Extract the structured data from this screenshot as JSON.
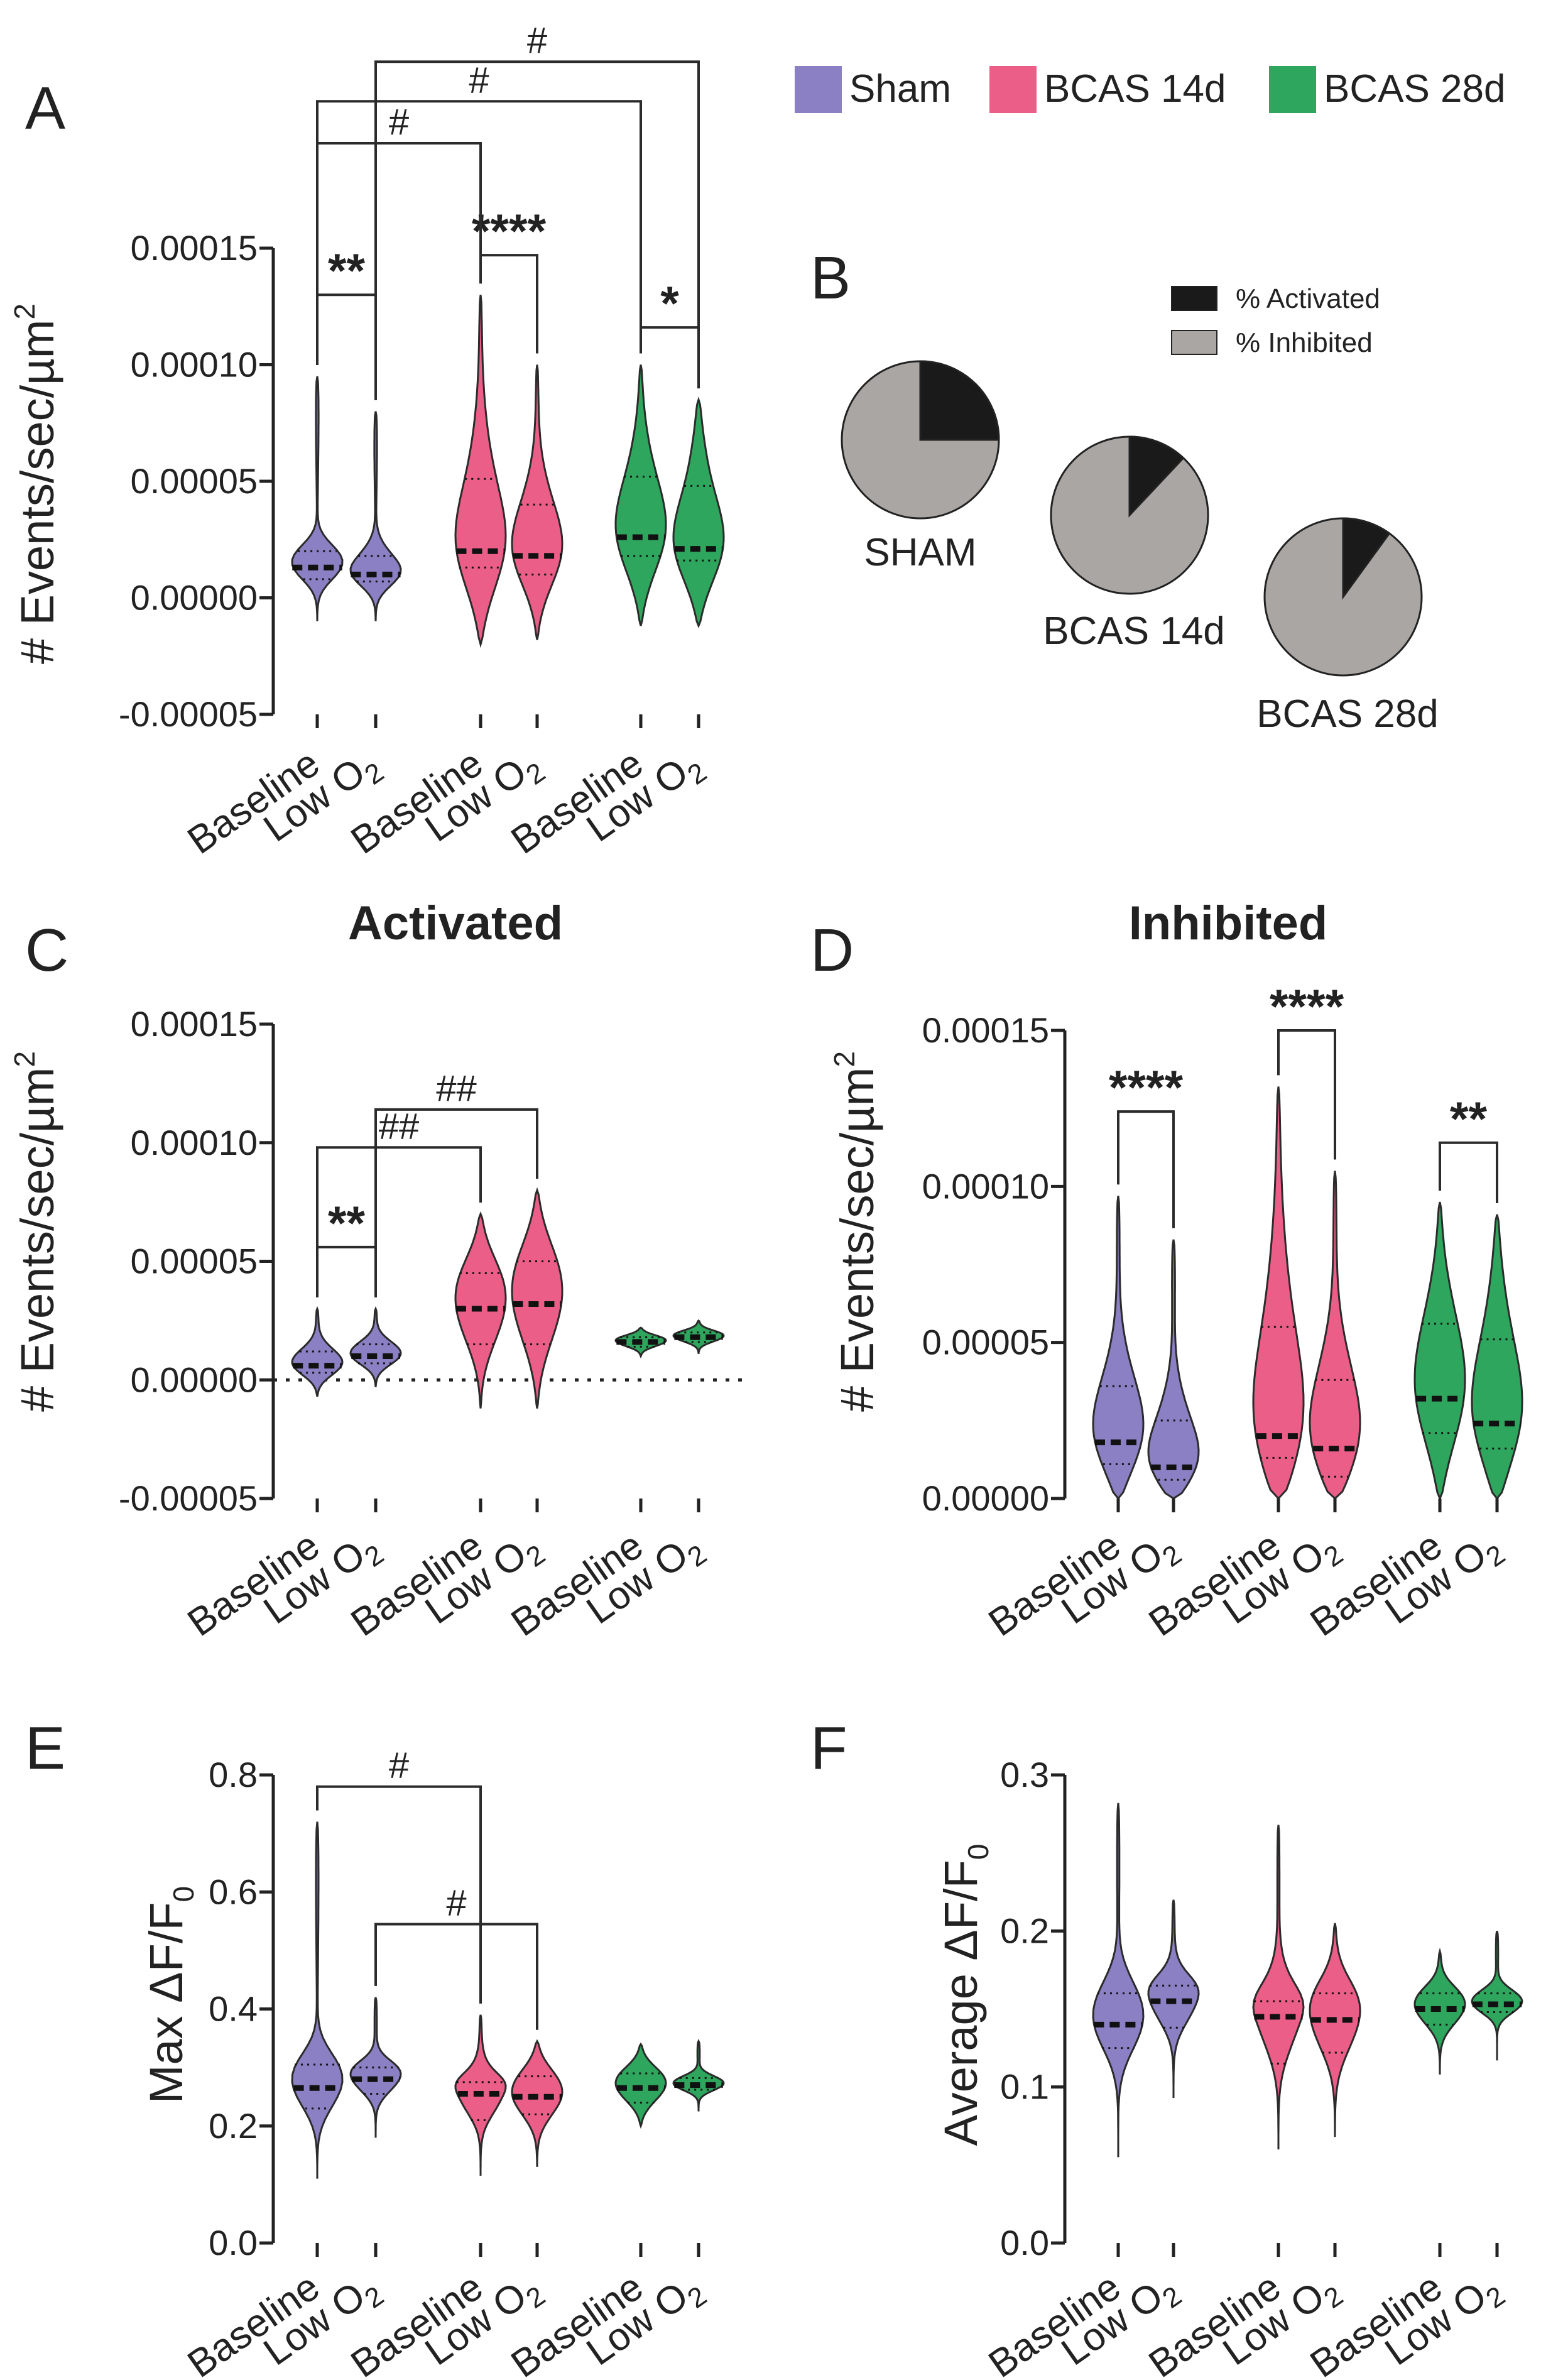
{
  "legend": {
    "items": [
      {
        "label": "Sham",
        "color": "#8a80c3"
      },
      {
        "label": "BCAS 14d",
        "color": "#ea5e88"
      },
      {
        "label": "BCAS 28d",
        "color": "#2fa65d"
      }
    ]
  },
  "panels": {
    "A": {
      "letter": "A"
    },
    "B": {
      "letter": "B"
    },
    "C": {
      "letter": "C",
      "title": "Activated"
    },
    "D": {
      "letter": "D",
      "title": "Inhibited"
    },
    "E": {
      "letter": "E"
    },
    "F": {
      "letter": "F"
    }
  },
  "xlabels": {
    "baseline": "Baseline",
    "low": "Low O",
    "sub": "2"
  },
  "chart_data": [
    {
      "id": "A",
      "type": "violin",
      "ylabel": "# Events/sec/µm",
      "ylabel_sup": "2",
      "ylim": [
        -5e-05,
        0.00015
      ],
      "yticks": [
        {
          "v": 0.00015,
          "label": "0.00015"
        },
        {
          "v": 0.0001,
          "label": "0.00010"
        },
        {
          "v": 5e-05,
          "label": "0.00005"
        },
        {
          "v": 0,
          "label": "0.00000"
        },
        {
          "v": -5e-05,
          "label": "-0.00005"
        }
      ],
      "zero_line": false,
      "violins": [
        {
          "group": "Sham",
          "condition": "Baseline",
          "min": -1e-05,
          "max": 9.5e-05,
          "median": 1.3e-05,
          "q1": 8e-06,
          "q3": 2e-05
        },
        {
          "group": "Sham",
          "condition": "Low O2",
          "min": -1e-05,
          "max": 8e-05,
          "median": 1e-05,
          "q1": 7e-06,
          "q3": 1.8e-05
        },
        {
          "group": "BCAS 14d",
          "condition": "Baseline",
          "min": -2e-05,
          "max": 0.00013,
          "median": 2e-05,
          "q1": 1.3e-05,
          "q3": 5.1e-05
        },
        {
          "group": "BCAS 14d",
          "condition": "Low O2",
          "min": -1.8e-05,
          "max": 0.0001,
          "median": 1.8e-05,
          "q1": 1e-05,
          "q3": 4e-05
        },
        {
          "group": "BCAS 28d",
          "condition": "Baseline",
          "min": -1.2e-05,
          "max": 0.0001,
          "median": 2.6e-05,
          "q1": 1.8e-05,
          "q3": 5.2e-05
        },
        {
          "group": "BCAS 28d",
          "condition": "Low O2",
          "min": -1.2e-05,
          "max": 8.5e-05,
          "median": 2.1e-05,
          "q1": 1.6e-05,
          "q3": 4.8e-05
        }
      ],
      "comparisons": [
        {
          "from": 0,
          "to": 1,
          "label": "**",
          "y": 0.00013
        },
        {
          "from": 2,
          "to": 3,
          "label": "****",
          "y": 0.000147
        },
        {
          "from": 4,
          "to": 5,
          "label": "*",
          "y": 0.000116
        },
        {
          "from": 0,
          "to": 2,
          "label": "#",
          "y": 0.000195
        },
        {
          "from": 0,
          "to": 4,
          "label": "#",
          "y": 0.000213
        },
        {
          "from": 1,
          "to": 5,
          "label": "#",
          "y": 0.00023
        }
      ]
    },
    {
      "id": "B",
      "type": "pie",
      "series_labels": [
        "% Activated",
        "% Inhibited"
      ],
      "colors": [
        "#1a1a1a",
        "#aaa6a3"
      ],
      "pies": [
        {
          "label": "SHAM",
          "activated": 25,
          "inhibited": 75
        },
        {
          "label": "BCAS 14d",
          "activated": 12,
          "inhibited": 88
        },
        {
          "label": "BCAS 28d",
          "activated": 10,
          "inhibited": 90
        }
      ]
    },
    {
      "id": "C",
      "type": "violin",
      "title": "Activated",
      "ylabel": "# Events/sec/µm",
      "ylabel_sup": "2",
      "ylim": [
        -5e-05,
        0.00015
      ],
      "yticks": [
        {
          "v": 0.00015,
          "label": "0.00015"
        },
        {
          "v": 0.0001,
          "label": "0.00010"
        },
        {
          "v": 5e-05,
          "label": "0.00005"
        },
        {
          "v": 0,
          "label": "0.00000"
        },
        {
          "v": -5e-05,
          "label": "-0.00005"
        }
      ],
      "zero_line": true,
      "violins": [
        {
          "group": "Sham",
          "condition": "Baseline",
          "min": -7e-06,
          "max": 3e-05,
          "median": 6e-06,
          "q1": 3e-06,
          "q3": 1.2e-05
        },
        {
          "group": "Sham",
          "condition": "Low O2",
          "min": -3e-06,
          "max": 3e-05,
          "median": 1e-05,
          "q1": 7e-06,
          "q3": 1.5e-05
        },
        {
          "group": "BCAS 14d",
          "condition": "Baseline",
          "min": -1.2e-05,
          "max": 7e-05,
          "median": 3e-05,
          "q1": 1.5e-05,
          "q3": 4.5e-05
        },
        {
          "group": "BCAS 14d",
          "condition": "Low O2",
          "min": -1.2e-05,
          "max": 8e-05,
          "median": 3.2e-05,
          "q1": 1.5e-05,
          "q3": 5e-05
        },
        {
          "group": "BCAS 28d",
          "condition": "Baseline",
          "min": 1e-05,
          "max": 2.2e-05,
          "median": 1.6e-05,
          "q1": 1.4e-05,
          "q3": 1.8e-05
        },
        {
          "group": "BCAS 28d",
          "condition": "Low O2",
          "min": 1.1e-05,
          "max": 2.5e-05,
          "median": 1.8e-05,
          "q1": 1.6e-05,
          "q3": 2e-05
        }
      ],
      "comparisons": [
        {
          "from": 0,
          "to": 1,
          "label": "**",
          "y": 5.6e-05
        },
        {
          "from": 0,
          "to": 2,
          "label": "##",
          "y": 9.8e-05
        },
        {
          "from": 1,
          "to": 3,
          "label": "##",
          "y": 0.000114
        }
      ]
    },
    {
      "id": "D",
      "type": "violin",
      "title": "Inhibited",
      "ylabel": "# Events/sec/µm",
      "ylabel_sup": "2",
      "ylim": [
        0,
        0.00015
      ],
      "yticks": [
        {
          "v": 0.00015,
          "label": "0.00015"
        },
        {
          "v": 0.0001,
          "label": "0.00010"
        },
        {
          "v": 5e-05,
          "label": "0.00005"
        },
        {
          "v": 0,
          "label": "0.00000"
        }
      ],
      "zero_line": false,
      "violins": [
        {
          "group": "Sham",
          "condition": "Baseline",
          "min": 0,
          "max": 9.7e-05,
          "median": 1.8e-05,
          "q1": 1.1e-05,
          "q3": 3.6e-05
        },
        {
          "group": "Sham",
          "condition": "Low O2",
          "min": 0,
          "max": 8.3e-05,
          "median": 1e-05,
          "q1": 6e-06,
          "q3": 2.5e-05
        },
        {
          "group": "BCAS 14d",
          "condition": "Baseline",
          "min": 0,
          "max": 0.000132,
          "median": 2e-05,
          "q1": 1.3e-05,
          "q3": 5.5e-05
        },
        {
          "group": "BCAS 14d",
          "condition": "Low O2",
          "min": 0,
          "max": 0.000105,
          "median": 1.6e-05,
          "q1": 7e-06,
          "q3": 3.8e-05
        },
        {
          "group": "BCAS 28d",
          "condition": "Baseline",
          "min": 0,
          "max": 9.5e-05,
          "median": 3.2e-05,
          "q1": 2.1e-05,
          "q3": 5.6e-05
        },
        {
          "group": "BCAS 28d",
          "condition": "Low O2",
          "min": 0,
          "max": 9.1e-05,
          "median": 2.4e-05,
          "q1": 1.6e-05,
          "q3": 5.1e-05
        }
      ],
      "comparisons": [
        {
          "from": 0,
          "to": 1,
          "label": "****",
          "y": 0.000124
        },
        {
          "from": 2,
          "to": 3,
          "label": "****",
          "y": 0.00015
        },
        {
          "from": 4,
          "to": 5,
          "label": "**",
          "y": 0.000114
        }
      ]
    },
    {
      "id": "E",
      "type": "violin",
      "ylabel": "Max ΔF/F",
      "ylabel_sub": "0",
      "ylim": [
        0,
        0.8
      ],
      "yticks": [
        {
          "v": 0.8,
          "label": "0.8"
        },
        {
          "v": 0.6,
          "label": "0.6"
        },
        {
          "v": 0.4,
          "label": "0.4"
        },
        {
          "v": 0.2,
          "label": "0.2"
        },
        {
          "v": 0,
          "label": "0.0"
        }
      ],
      "zero_line": false,
      "violins": [
        {
          "group": "Sham",
          "condition": "Baseline",
          "min": 0.11,
          "max": 0.72,
          "median": 0.265,
          "q1": 0.23,
          "q3": 0.305
        },
        {
          "group": "Sham",
          "condition": "Low O2",
          "min": 0.18,
          "max": 0.42,
          "median": 0.28,
          "q1": 0.255,
          "q3": 0.3
        },
        {
          "group": "BCAS 14d",
          "condition": "Baseline",
          "min": 0.115,
          "max": 0.39,
          "median": 0.255,
          "q1": 0.21,
          "q3": 0.275
        },
        {
          "group": "BCAS 14d",
          "condition": "Low O2",
          "min": 0.13,
          "max": 0.345,
          "median": 0.25,
          "q1": 0.22,
          "q3": 0.285
        },
        {
          "group": "BCAS 28d",
          "condition": "Baseline",
          "min": 0.2,
          "max": 0.34,
          "median": 0.265,
          "q1": 0.24,
          "q3": 0.29
        },
        {
          "group": "BCAS 28d",
          "condition": "Low O2",
          "min": 0.225,
          "max": 0.345,
          "median": 0.27,
          "q1": 0.262,
          "q3": 0.282
        }
      ],
      "comparisons": [
        {
          "from": 0,
          "to": 2,
          "label": "#",
          "y": 0.78
        },
        {
          "from": 1,
          "to": 3,
          "label": "#",
          "y": 0.545
        }
      ]
    },
    {
      "id": "F",
      "type": "violin",
      "ylabel": "Average ΔF/F",
      "ylabel_sub": "0",
      "ylim": [
        0,
        0.3
      ],
      "yticks": [
        {
          "v": 0.3,
          "label": "0.3"
        },
        {
          "v": 0.2,
          "label": "0.2"
        },
        {
          "v": 0.1,
          "label": "0.1"
        },
        {
          "v": 0,
          "label": "0.0"
        }
      ],
      "zero_line": false,
      "violins": [
        {
          "group": "Sham",
          "condition": "Baseline",
          "min": 0.055,
          "max": 0.282,
          "median": 0.14,
          "q1": 0.125,
          "q3": 0.16
        },
        {
          "group": "Sham",
          "condition": "Low O2",
          "min": 0.093,
          "max": 0.22,
          "median": 0.155,
          "q1": 0.138,
          "q3": 0.165
        },
        {
          "group": "BCAS 14d",
          "condition": "Baseline",
          "min": 0.06,
          "max": 0.268,
          "median": 0.145,
          "q1": 0.115,
          "q3": 0.155
        },
        {
          "group": "BCAS 14d",
          "condition": "Low O2",
          "min": 0.068,
          "max": 0.205,
          "median": 0.143,
          "q1": 0.122,
          "q3": 0.16
        },
        {
          "group": "BCAS 28d",
          "condition": "Baseline",
          "min": 0.108,
          "max": 0.187,
          "median": 0.15,
          "q1": 0.14,
          "q3": 0.16
        },
        {
          "group": "BCAS 28d",
          "condition": "Low O2",
          "min": 0.117,
          "max": 0.2,
          "median": 0.153,
          "q1": 0.148,
          "q3": 0.16
        }
      ],
      "comparisons": []
    }
  ]
}
